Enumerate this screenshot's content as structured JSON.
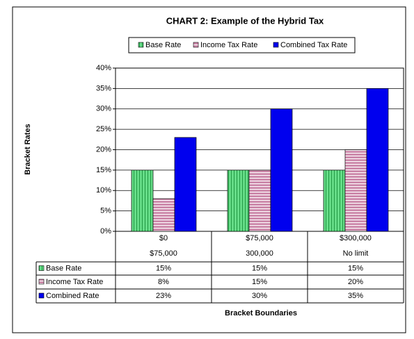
{
  "chart_data": {
    "type": "bar",
    "title": "CHART 2:  Example of the Hybrid Tax",
    "y_label": "Bracket Rates",
    "x_label": "Bracket Boundaries",
    "categories": [
      [
        "$0",
        "$75,000"
      ],
      [
        "$75,000",
        "300,000"
      ],
      [
        "$300,000",
        "No limit"
      ]
    ],
    "series": [
      {
        "name": "Base Rate",
        "table_label": "Base Rate",
        "color": "#33cc66",
        "values": [
          15,
          15,
          15
        ],
        "value_labels": [
          "15%",
          "15%",
          "15%"
        ]
      },
      {
        "name": "Income Tax Rate",
        "table_label": "Income Tax Rate",
        "color": "#993366",
        "values": [
          8,
          15,
          20
        ],
        "value_labels": [
          "8%",
          "15%",
          "20%"
        ]
      },
      {
        "name": "Combined Tax Rate",
        "table_label": "Combined Rate",
        "color": "#0000ee",
        "values": [
          23,
          30,
          35
        ],
        "value_labels": [
          "23%",
          "30%",
          "35%"
        ]
      }
    ],
    "ylim": [
      0,
      40
    ],
    "yticks": [
      {
        "value": 0,
        "label": "0%"
      },
      {
        "value": 5,
        "label": "5%"
      },
      {
        "value": 10,
        "label": "10%"
      },
      {
        "value": 15,
        "label": "15%"
      },
      {
        "value": 20,
        "label": "20%"
      },
      {
        "value": 25,
        "label": "25%"
      },
      {
        "value": 30,
        "label": "30%"
      },
      {
        "value": 35,
        "label": "35%"
      },
      {
        "value": 40,
        "label": "40%"
      }
    ],
    "grid": true
  }
}
